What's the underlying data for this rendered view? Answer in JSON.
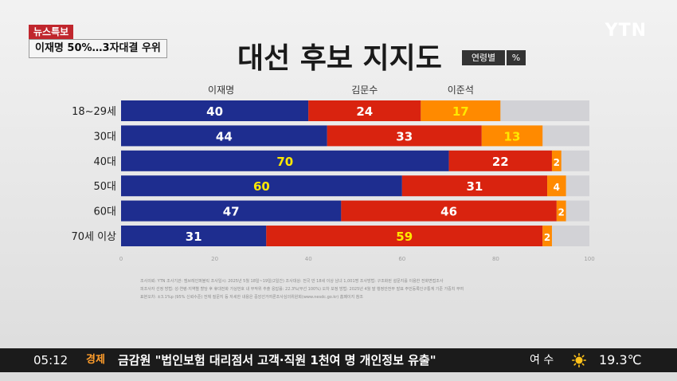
{
  "header": {
    "news_tag": "뉴스특보",
    "headline": "이재명 50%…3자대결 우위",
    "logo": "YTN"
  },
  "title": "대선 후보 지지도",
  "tags": [
    "연령별",
    "%"
  ],
  "chart_data": {
    "type": "bar",
    "orientation": "horizontal",
    "stacked": true,
    "categories": [
      "18~29세",
      "30대",
      "40대",
      "50대",
      "60대",
      "70세 이상"
    ],
    "series": [
      {
        "name": "이재명",
        "color": "#1e2d8f",
        "values": [
          40,
          44,
          70,
          60,
          47,
          31
        ]
      },
      {
        "name": "김문수",
        "color": "#d9230f",
        "values": [
          24,
          33,
          22,
          31,
          46,
          59
        ]
      },
      {
        "name": "이준석",
        "color": "#ff8a00",
        "values": [
          17,
          13,
          2,
          4,
          2,
          2
        ]
      }
    ],
    "remainder_color": "#d2d2d6",
    "xlim": [
      0,
      100
    ],
    "xticks": [
      "0",
      "20",
      "40",
      "60",
      "80",
      "100"
    ],
    "legend": "top"
  },
  "source_lines": [
    "조사의뢰: YTN   조사기관: 엠브레인퍼블릭   조사일시: 2025년 5월 18일~19일(2일간)   조사대상: 전국 만 18세 이상 남녀 1,001명   조사방법: 구조화된 설문지를 이용한 전화면접조사",
    "피조사자 선정 방법: 성·연령·지역별 할당 후 휴대전화 가상번호 내 무작위 추출   응답률: 22.3%(무선 100%)   오차 보정 방법: 2025년 4월 말 행정안전부 발표 주민등록인구통계 기준 가중치 부여",
    "표본오차: ±3.1%p (95% 신뢰수준)   전체 질문지 등 자세한 내용은 중앙선거여론조사심의위원회(www.nesdc.go.kr) 홈페이지 참조"
  ],
  "ticker": {
    "time": "05:12",
    "category": "경제",
    "news": "금감원 \"법인보험 대리점서 고객·직원 1천여 명 개인정보 유출\"",
    "place": "여 수",
    "weather_icon": "sun-icon",
    "temperature": "19.3℃"
  }
}
